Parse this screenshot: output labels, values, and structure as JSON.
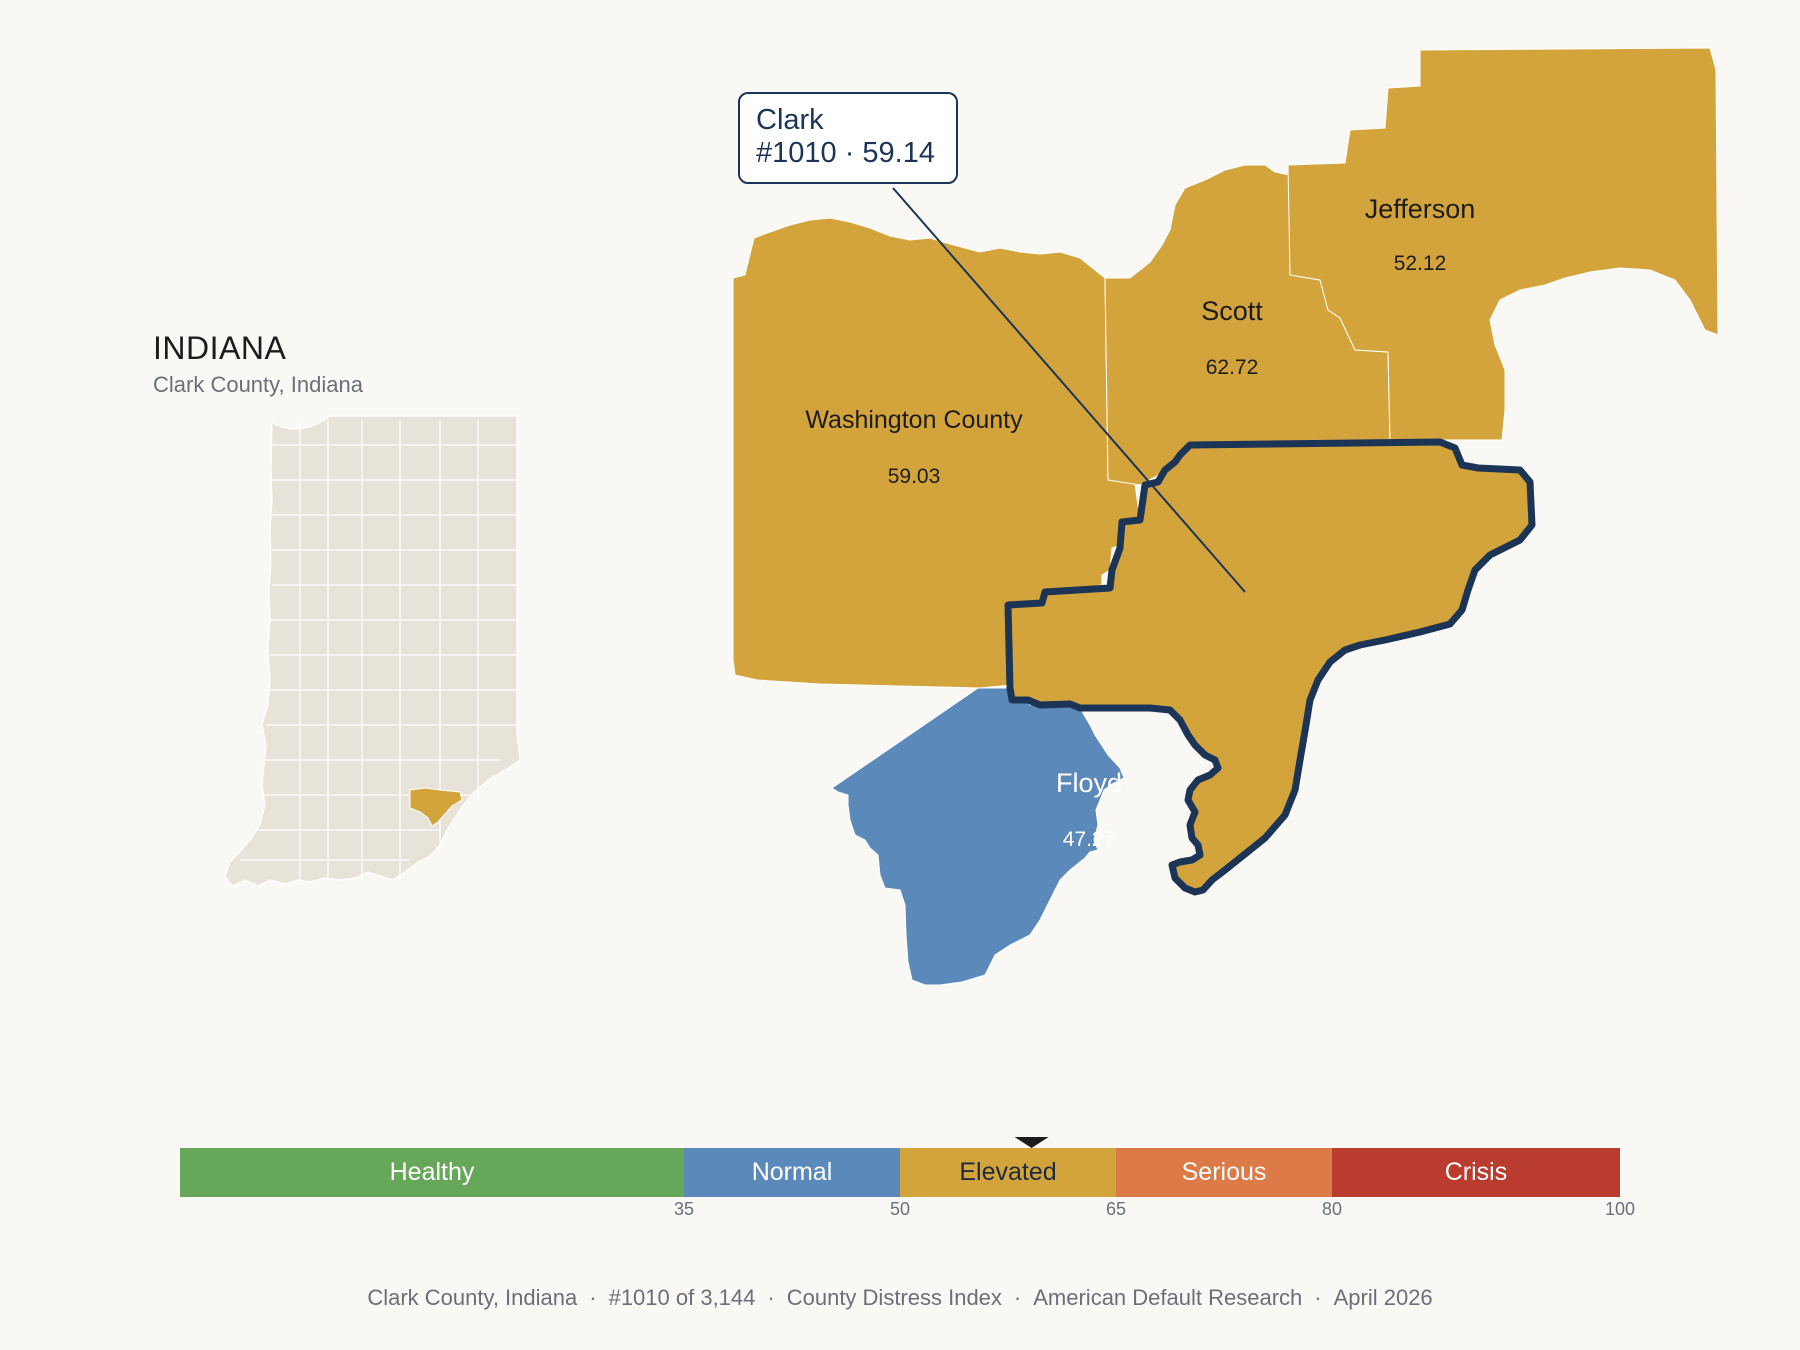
{
  "state": {
    "title": "INDIANA",
    "subtitle": "Clark County, Indiana"
  },
  "colors": {
    "elevated": "#d4a43c",
    "normal": "#5b8aba",
    "healthy": "#67a75a",
    "serious": "#dc7a48",
    "crisis": "#b93c2e",
    "outline": "#1c3557",
    "state_fill": "#e8e3d8",
    "background": "#f9f8f5"
  },
  "counties": [
    {
      "name": "Washington County",
      "value": "59.03"
    },
    {
      "name": "Scott",
      "value": "62.72"
    },
    {
      "name": "Jefferson",
      "value": "52.12"
    },
    {
      "name": "Floyd",
      "value": "47.27"
    }
  ],
  "callout": {
    "name": "Clark",
    "detail": "#1010 · 59.14"
  },
  "scale": {
    "segments": [
      {
        "label": "Healthy"
      },
      {
        "label": "Normal"
      },
      {
        "label": "Elevated"
      },
      {
        "label": "Serious"
      },
      {
        "label": "Crisis"
      }
    ],
    "ticks": [
      "35",
      "50",
      "65",
      "80",
      "100"
    ],
    "marker_value": 59.14
  },
  "footer": {
    "county": "Clark County, Indiana",
    "rank": "#1010 of 3,144",
    "index": "County Distress Index",
    "source": "American Default Research",
    "date": "April 2026"
  }
}
